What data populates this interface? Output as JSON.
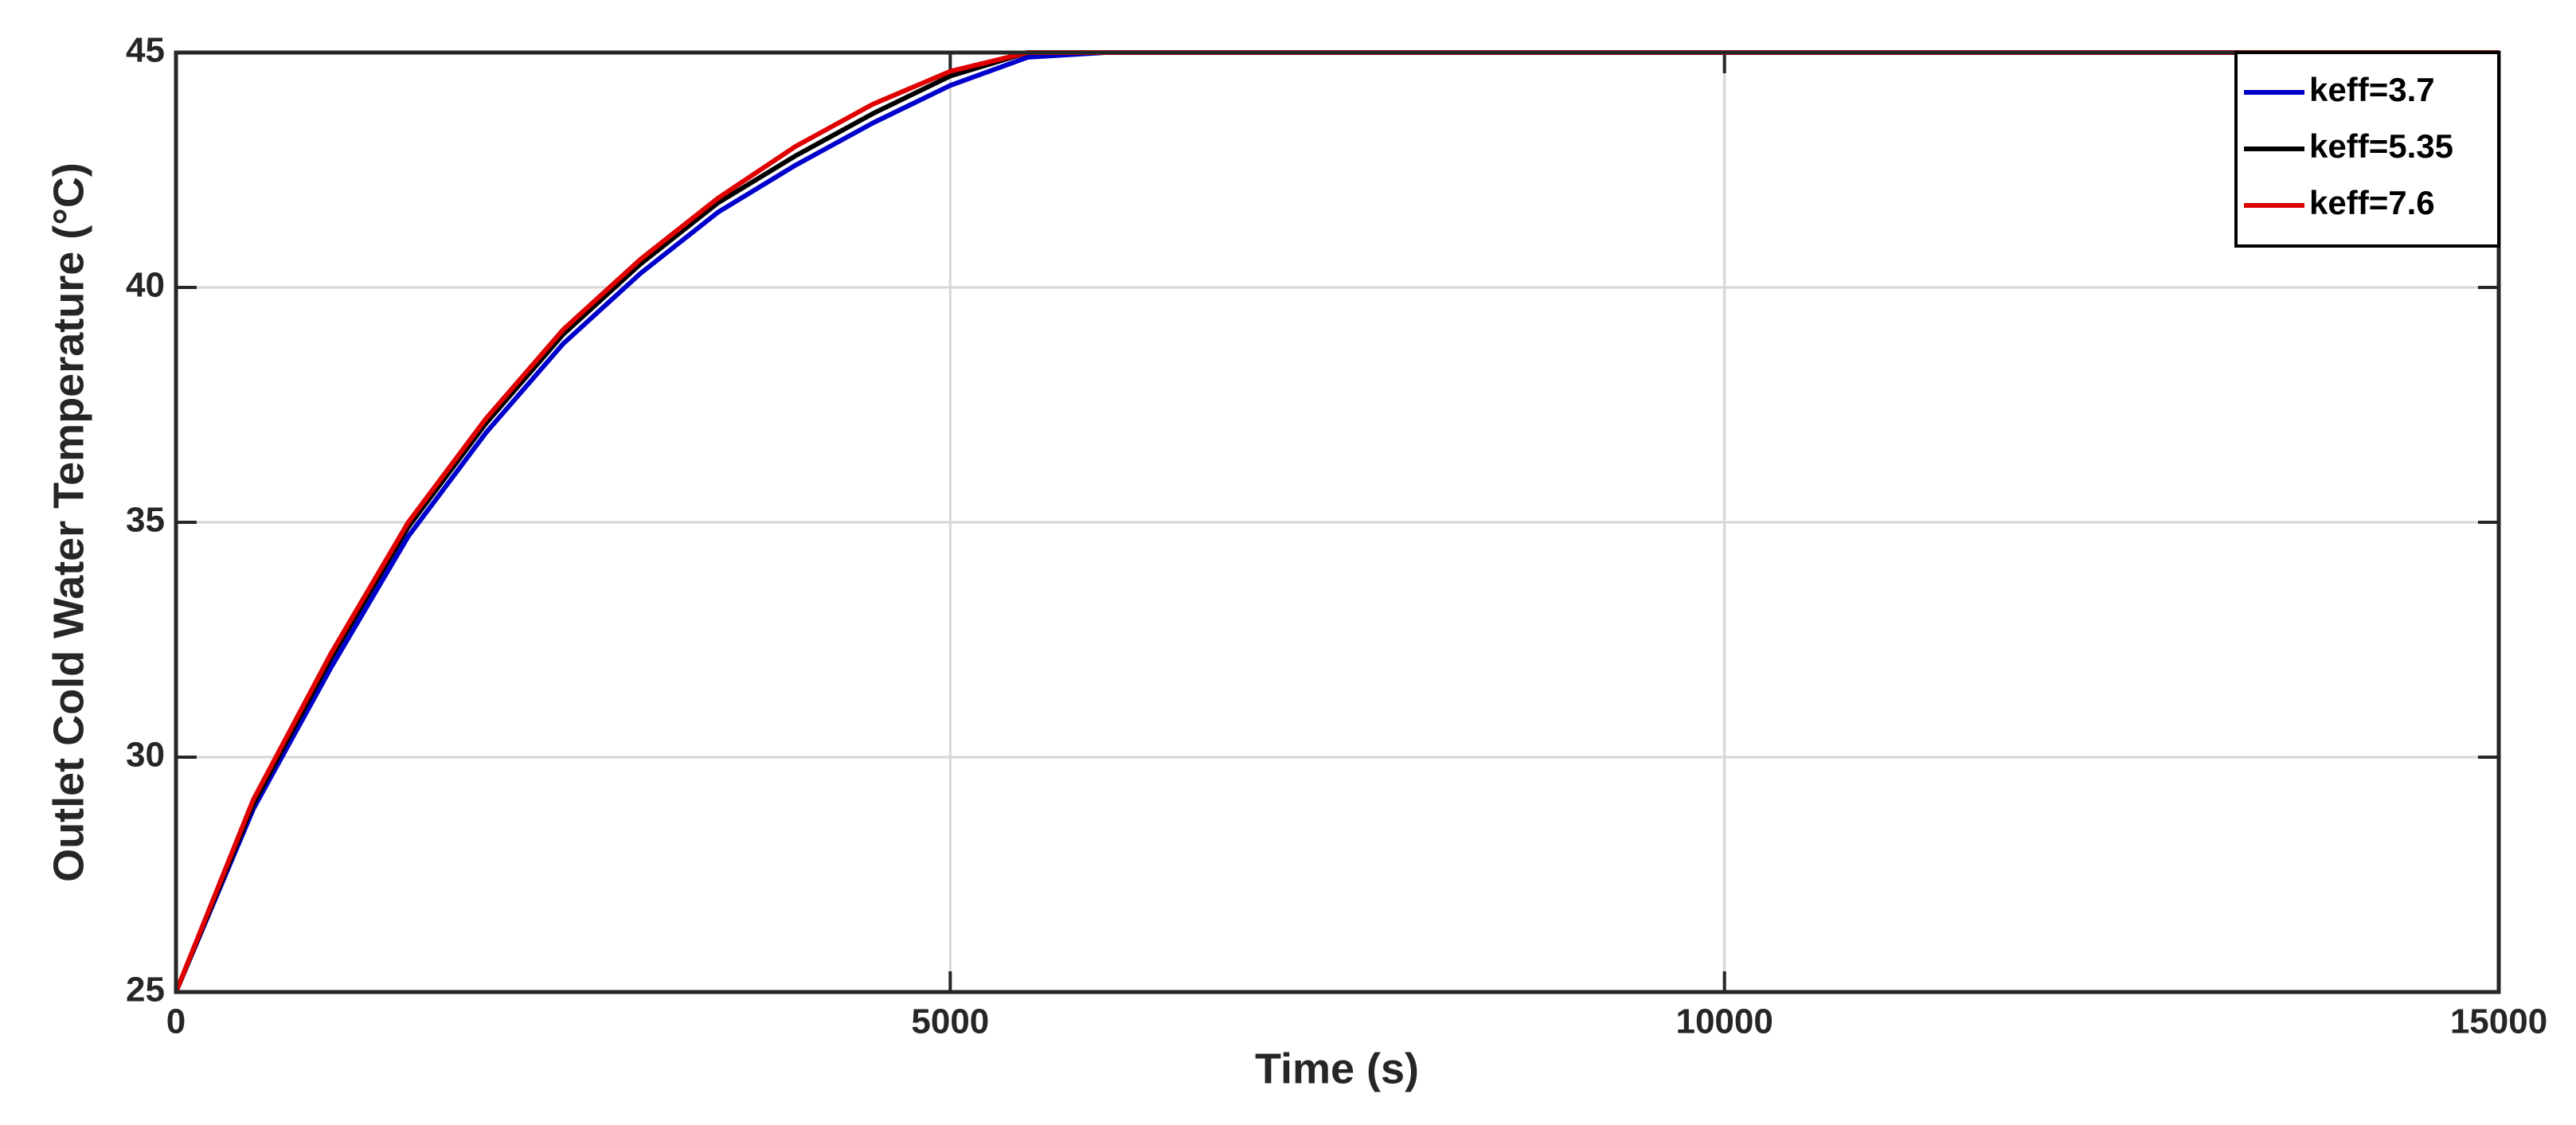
{
  "chart_data": {
    "type": "line",
    "xlabel": "Time (s)",
    "ylabel": "Outlet Cold Water Temperature (°C)",
    "x": [
      0,
      500,
      1000,
      1500,
      2000,
      2500,
      3000,
      3500,
      4000,
      4500,
      5000,
      5500,
      6000,
      15000
    ],
    "series": [
      {
        "name": "keff=3.7",
        "color": "#0000cc",
        "values": [
          25,
          28.9,
          31.9,
          34.7,
          36.9,
          38.8,
          40.3,
          41.6,
          42.6,
          43.5,
          44.3,
          44.9,
          45,
          45
        ]
      },
      {
        "name": "keff=5.35",
        "color": "#000000",
        "values": [
          25,
          29.0,
          32.1,
          34.9,
          37.1,
          39.0,
          40.5,
          41.8,
          42.8,
          43.7,
          44.5,
          45,
          45,
          45
        ]
      },
      {
        "name": "keff=7.6",
        "color": "#e00000",
        "values": [
          25,
          29.1,
          32.2,
          35.0,
          37.2,
          39.1,
          40.6,
          41.9,
          43.0,
          43.9,
          44.6,
          45,
          45,
          45
        ]
      }
    ],
    "xlim": [
      0,
      15000
    ],
    "xticks": [
      0,
      5000,
      10000,
      15000
    ],
    "ylim": [
      25,
      45
    ],
    "yticks": [
      25,
      30,
      35,
      40,
      45
    ],
    "grid": true,
    "legend": "upper right"
  }
}
